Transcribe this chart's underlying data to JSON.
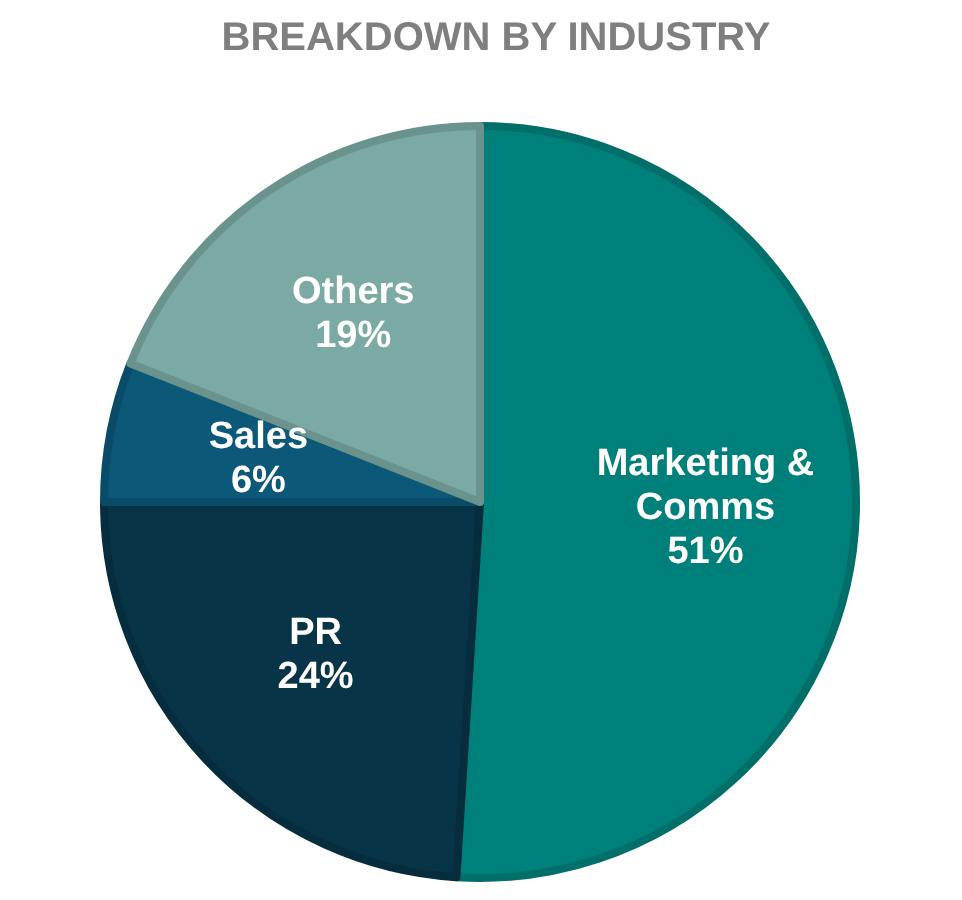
{
  "chart_data": {
    "type": "pie",
    "title": "BREAKDOWN BY INDUSTRY",
    "categories": [
      "Marketing & Comms",
      "PR",
      "Sales",
      "Others"
    ],
    "values": [
      51,
      24,
      6,
      19
    ],
    "colors": [
      "#00807a",
      "#073447",
      "#0b5878",
      "#7ba9a4"
    ],
    "value_labels": [
      "51%",
      "24%",
      "6%",
      "19%"
    ]
  }
}
